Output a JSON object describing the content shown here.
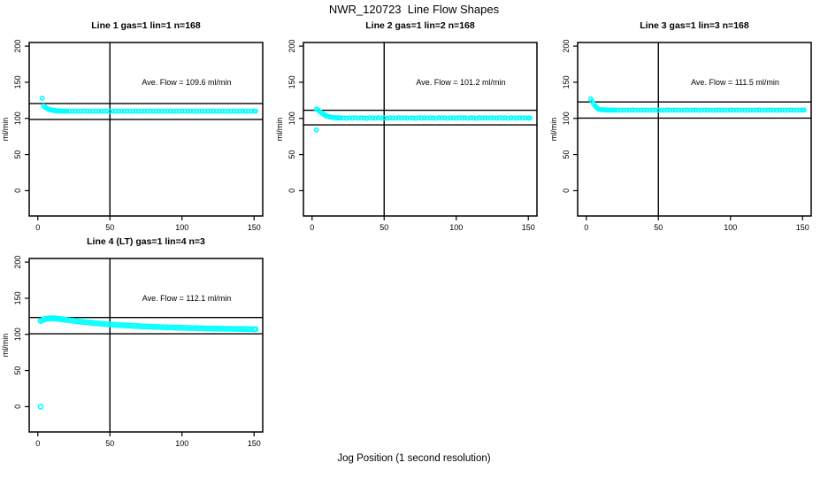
{
  "figure": {
    "title": "NWR_120723  Line Flow Shapes",
    "xlabel": "Jog Position (1 second resolution)",
    "background": "#ffffff",
    "point_color": "#00FFFF",
    "axis_color": "#000000"
  },
  "chart_data": [
    {
      "type": "scatter",
      "title": "Line 1 gas=1 lin=1 n=168",
      "ylabel": "ml/min",
      "annotation": "Ave. Flow =  109.6  ml/min",
      "ave_flow": 109.6,
      "x_ticks": [
        0,
        50,
        100,
        150
      ],
      "y_ticks": [
        0,
        50,
        100,
        150,
        200
      ],
      "xlim": [
        -6,
        156
      ],
      "ylim": [
        -35,
        205
      ],
      "vline_x": 50,
      "ref_lines": [
        120.6,
        98.6
      ],
      "grid": false,
      "point_radius": 2.1,
      "points": [
        [
          3,
          128
        ],
        [
          4,
          117.3
        ],
        [
          5,
          115.6
        ],
        [
          6,
          114.2
        ],
        [
          7,
          113.1
        ],
        [
          8,
          112.3
        ],
        [
          9,
          111.7
        ],
        [
          10,
          111.3
        ],
        [
          11,
          111
        ],
        [
          12,
          110.7
        ],
        [
          13,
          110.5
        ],
        [
          14,
          110.4
        ],
        [
          15,
          110.3
        ],
        [
          16,
          110.2
        ],
        [
          17,
          110.1
        ],
        [
          18,
          110
        ],
        [
          19,
          110
        ],
        [
          20,
          109.9
        ],
        [
          22,
          110
        ],
        [
          24,
          109.8
        ],
        [
          26,
          110.1
        ],
        [
          28,
          109.9
        ],
        [
          30,
          110
        ],
        [
          32,
          110.2
        ],
        [
          34,
          109.8
        ],
        [
          36,
          110
        ],
        [
          38,
          109.9
        ],
        [
          40,
          110.1
        ],
        [
          42,
          110
        ],
        [
          44,
          109.8
        ],
        [
          46,
          110
        ],
        [
          48,
          110.1
        ],
        [
          50,
          109.9
        ],
        [
          52,
          110
        ],
        [
          54,
          109.8
        ],
        [
          56,
          110.2
        ],
        [
          58,
          110
        ],
        [
          60,
          109.9
        ],
        [
          62,
          110.1
        ],
        [
          64,
          110
        ],
        [
          66,
          109.8
        ],
        [
          68,
          110
        ],
        [
          70,
          110.1
        ],
        [
          72,
          109.9
        ],
        [
          74,
          110
        ],
        [
          76,
          110.2
        ],
        [
          78,
          109.8
        ],
        [
          80,
          110
        ],
        [
          82,
          109.9
        ],
        [
          84,
          110.1
        ],
        [
          86,
          110
        ],
        [
          88,
          109.8
        ],
        [
          90,
          110
        ],
        [
          92,
          110.1
        ],
        [
          94,
          109.9
        ],
        [
          96,
          110
        ],
        [
          98,
          109.8
        ],
        [
          100,
          110.2
        ],
        [
          102,
          110
        ],
        [
          104,
          109.9
        ],
        [
          106,
          110.1
        ],
        [
          108,
          110
        ],
        [
          110,
          109.8
        ],
        [
          112,
          110
        ],
        [
          114,
          110.1
        ],
        [
          116,
          109.9
        ],
        [
          118,
          110
        ],
        [
          120,
          110.2
        ],
        [
          122,
          109.8
        ],
        [
          124,
          110
        ],
        [
          126,
          109.9
        ],
        [
          128,
          110.1
        ],
        [
          130,
          110
        ],
        [
          132,
          109.8
        ],
        [
          134,
          110
        ],
        [
          136,
          110.1
        ],
        [
          138,
          109.9
        ],
        [
          140,
          110
        ],
        [
          142,
          110.2
        ],
        [
          144,
          109.8
        ],
        [
          146,
          110
        ],
        [
          148,
          109.9
        ],
        [
          150,
          110.1
        ],
        [
          151,
          110
        ]
      ]
    },
    {
      "type": "scatter",
      "title": "Line 2 gas=1 lin=2 n=168",
      "ylabel": "ml/min",
      "annotation": "Ave. Flow =  101.2  ml/min",
      "ave_flow": 101.2,
      "x_ticks": [
        0,
        50,
        100,
        150
      ],
      "y_ticks": [
        0,
        50,
        100,
        150,
        200
      ],
      "xlim": [
        -6,
        156
      ],
      "ylim": [
        -35,
        205
      ],
      "vline_x": 50,
      "ref_lines": [
        111.3,
        91.1
      ],
      "grid": false,
      "point_radius": 2.1,
      "points": [
        [
          3,
          84
        ],
        [
          3,
          113
        ],
        [
          4,
          111.8
        ],
        [
          5,
          110.2
        ],
        [
          6,
          108.5
        ],
        [
          7,
          107
        ],
        [
          8,
          105.6
        ],
        [
          9,
          104.4
        ],
        [
          10,
          103.5
        ],
        [
          11,
          102.8
        ],
        [
          12,
          102.2
        ],
        [
          13,
          101.8
        ],
        [
          14,
          101.5
        ],
        [
          15,
          101.2
        ],
        [
          16,
          101
        ],
        [
          17,
          100.9
        ],
        [
          18,
          100.8
        ],
        [
          19,
          100.7
        ],
        [
          20,
          100.7
        ],
        [
          22,
          100.6
        ],
        [
          24,
          100.2
        ],
        [
          26,
          100.8
        ],
        [
          28,
          100.5
        ],
        [
          30,
          100.9
        ],
        [
          32,
          100.3
        ],
        [
          34,
          100.7
        ],
        [
          36,
          100.5
        ],
        [
          38,
          100.1
        ],
        [
          40,
          100.8
        ],
        [
          42,
          100.6
        ],
        [
          44,
          100.3
        ],
        [
          46,
          100.9
        ],
        [
          48,
          100.5
        ],
        [
          50,
          100.7
        ],
        [
          52,
          100.2
        ],
        [
          54,
          100.8
        ],
        [
          56,
          100.6
        ],
        [
          58,
          100.4
        ],
        [
          60,
          100.9
        ],
        [
          62,
          100.5
        ],
        [
          64,
          100.7
        ],
        [
          66,
          100.3
        ],
        [
          68,
          100.8
        ],
        [
          70,
          100.6
        ],
        [
          72,
          100.2
        ],
        [
          74,
          100.9
        ],
        [
          76,
          100.5
        ],
        [
          78,
          100.7
        ],
        [
          80,
          100.4
        ],
        [
          82,
          100.8
        ],
        [
          84,
          100.6
        ],
        [
          86,
          100.3
        ],
        [
          88,
          100.9
        ],
        [
          90,
          100.5
        ],
        [
          92,
          100.7
        ],
        [
          94,
          100.2
        ],
        [
          96,
          100.8
        ],
        [
          98,
          100.6
        ],
        [
          100,
          100.4
        ],
        [
          102,
          100.9
        ],
        [
          104,
          100.5
        ],
        [
          106,
          100.7
        ],
        [
          108,
          100.3
        ],
        [
          110,
          100.8
        ],
        [
          112,
          100.6
        ],
        [
          114,
          100.2
        ],
        [
          116,
          100.9
        ],
        [
          118,
          100.5
        ],
        [
          120,
          100.7
        ],
        [
          122,
          100.4
        ],
        [
          124,
          100.8
        ],
        [
          126,
          100.6
        ],
        [
          128,
          100.3
        ],
        [
          130,
          100.9
        ],
        [
          132,
          100.5
        ],
        [
          134,
          100.7
        ],
        [
          136,
          100.2
        ],
        [
          138,
          100.8
        ],
        [
          140,
          100.6
        ],
        [
          142,
          100.4
        ],
        [
          144,
          100.9
        ],
        [
          146,
          100.5
        ],
        [
          148,
          100.7
        ],
        [
          150,
          100.3
        ],
        [
          151,
          100.6
        ]
      ]
    },
    {
      "type": "scatter",
      "title": "Line 3 gas=1 lin=3 n=168",
      "ylabel": "ml/min",
      "annotation": "Ave. Flow =  111.5  ml/min",
      "ave_flow": 111.5,
      "x_ticks": [
        0,
        50,
        100,
        150
      ],
      "y_ticks": [
        0,
        50,
        100,
        150,
        200
      ],
      "xlim": [
        -6,
        156
      ],
      "ylim": [
        -35,
        205
      ],
      "vline_x": 50,
      "ref_lines": [
        122.7,
        100.4
      ],
      "grid": false,
      "point_radius": 2.1,
      "points": [
        [
          3,
          127
        ],
        [
          4,
          124
        ],
        [
          5,
          120.5
        ],
        [
          6,
          117.5
        ],
        [
          7,
          115.2
        ],
        [
          8,
          113.6
        ],
        [
          9,
          112.6
        ],
        [
          10,
          112.1
        ],
        [
          11,
          111.9
        ],
        [
          12,
          111.8
        ],
        [
          13,
          111.7
        ],
        [
          14,
          111.6
        ],
        [
          15,
          111.6
        ],
        [
          16,
          111.5
        ],
        [
          17,
          111.5
        ],
        [
          18,
          111.5
        ],
        [
          19,
          111.4
        ],
        [
          20,
          111.5
        ],
        [
          22,
          111.5
        ],
        [
          24,
          111.3
        ],
        [
          26,
          111.6
        ],
        [
          28,
          111.4
        ],
        [
          30,
          111.5
        ],
        [
          32,
          111.7
        ],
        [
          34,
          111.3
        ],
        [
          36,
          111.5
        ],
        [
          38,
          111.4
        ],
        [
          40,
          111.6
        ],
        [
          42,
          111.5
        ],
        [
          44,
          111.3
        ],
        [
          46,
          111.5
        ],
        [
          48,
          111.6
        ],
        [
          50,
          111.4
        ],
        [
          52,
          111.5
        ],
        [
          54,
          111.3
        ],
        [
          56,
          111.7
        ],
        [
          58,
          111.5
        ],
        [
          60,
          111.4
        ],
        [
          62,
          111.6
        ],
        [
          64,
          111.5
        ],
        [
          66,
          111.3
        ],
        [
          68,
          111.5
        ],
        [
          70,
          111.6
        ],
        [
          72,
          111.4
        ],
        [
          74,
          111.5
        ],
        [
          76,
          111.7
        ],
        [
          78,
          111.3
        ],
        [
          80,
          111.5
        ],
        [
          82,
          111.4
        ],
        [
          84,
          111.6
        ],
        [
          86,
          111.5
        ],
        [
          88,
          111.3
        ],
        [
          90,
          111.5
        ],
        [
          92,
          111.6
        ],
        [
          94,
          111.4
        ],
        [
          96,
          111.5
        ],
        [
          98,
          111.3
        ],
        [
          100,
          111.7
        ],
        [
          102,
          111.5
        ],
        [
          104,
          111.4
        ],
        [
          106,
          111.6
        ],
        [
          108,
          111.5
        ],
        [
          110,
          111.3
        ],
        [
          112,
          111.5
        ],
        [
          114,
          111.6
        ],
        [
          116,
          111.4
        ],
        [
          118,
          111.5
        ],
        [
          120,
          111.7
        ],
        [
          122,
          111.3
        ],
        [
          124,
          111.5
        ],
        [
          126,
          111.4
        ],
        [
          128,
          111.6
        ],
        [
          130,
          111.5
        ],
        [
          132,
          111.3
        ],
        [
          134,
          111.5
        ],
        [
          136,
          111.6
        ],
        [
          138,
          111.4
        ],
        [
          140,
          111.5
        ],
        [
          142,
          111.7
        ],
        [
          144,
          111.3
        ],
        [
          146,
          111.5
        ],
        [
          148,
          111.4
        ],
        [
          150,
          111.6
        ],
        [
          151,
          111.5
        ]
      ]
    },
    {
      "type": "scatter",
      "title": "Line 4 (LT) gas=1 lin=4 n=3",
      "ylabel": "ml/min",
      "annotation": "Ave. Flow =  112.1  ml/min",
      "ave_flow": 112.1,
      "x_ticks": [
        0,
        50,
        100,
        150
      ],
      "y_ticks": [
        0,
        50,
        100,
        150,
        200
      ],
      "xlim": [
        -6,
        156
      ],
      "ylim": [
        -35,
        205
      ],
      "vline_x": 50,
      "ref_lines": [
        123.3,
        100.9
      ],
      "grid": false,
      "point_radius": 2.6,
      "points": [
        [
          2,
          0
        ],
        [
          2,
          118.5
        ],
        [
          3,
          119.8
        ],
        [
          4,
          120.6
        ],
        [
          5,
          121.2
        ],
        [
          6,
          121.6
        ],
        [
          7,
          121.9
        ],
        [
          8,
          122.1
        ],
        [
          9,
          122.2
        ],
        [
          10,
          122.2
        ],
        [
          11,
          122.1
        ],
        [
          12,
          122
        ],
        [
          13,
          121.8
        ],
        [
          14,
          121.6
        ],
        [
          15,
          121.4
        ],
        [
          16,
          121.1
        ],
        [
          17,
          120.9
        ],
        [
          18,
          120.6
        ],
        [
          19,
          120.3
        ],
        [
          20,
          120
        ],
        [
          22,
          119.5
        ],
        [
          24,
          119
        ],
        [
          26,
          118.5
        ],
        [
          28,
          118
        ],
        [
          30,
          117.5
        ],
        [
          32,
          117.1
        ],
        [
          34,
          116.7
        ],
        [
          36,
          116.3
        ],
        [
          38,
          115.9
        ],
        [
          40,
          115.5
        ],
        [
          42,
          115.1
        ],
        [
          44,
          114.8
        ],
        [
          46,
          114.4
        ],
        [
          48,
          114.1
        ],
        [
          50,
          113.8
        ],
        [
          52,
          113.5
        ],
        [
          54,
          113.2
        ],
        [
          56,
          113
        ],
        [
          58,
          112.7
        ],
        [
          60,
          112.5
        ],
        [
          62,
          112.2
        ],
        [
          64,
          112
        ],
        [
          66,
          111.8
        ],
        [
          68,
          111.6
        ],
        [
          70,
          111.4
        ],
        [
          72,
          111.2
        ],
        [
          74,
          111
        ],
        [
          76,
          110.8
        ],
        [
          78,
          110.7
        ],
        [
          80,
          110.5
        ],
        [
          82,
          110.3
        ],
        [
          84,
          110.2
        ],
        [
          86,
          110
        ],
        [
          88,
          109.9
        ],
        [
          90,
          109.7
        ],
        [
          92,
          109.6
        ],
        [
          94,
          109.5
        ],
        [
          96,
          109.3
        ],
        [
          98,
          109.2
        ],
        [
          100,
          109.1
        ],
        [
          102,
          109
        ],
        [
          104,
          108.9
        ],
        [
          106,
          108.8
        ],
        [
          108,
          108.7
        ],
        [
          110,
          108.6
        ],
        [
          112,
          108.5
        ],
        [
          114,
          108.4
        ],
        [
          116,
          108.3
        ],
        [
          118,
          108.2
        ],
        [
          120,
          108.1
        ],
        [
          122,
          108
        ],
        [
          124,
          107.9
        ],
        [
          126,
          107.9
        ],
        [
          128,
          107.8
        ],
        [
          130,
          107.7
        ],
        [
          132,
          107.7
        ],
        [
          134,
          107.6
        ],
        [
          136,
          107.5
        ],
        [
          138,
          107.5
        ],
        [
          140,
          107.4
        ],
        [
          142,
          107.4
        ],
        [
          144,
          107.3
        ],
        [
          146,
          107.3
        ],
        [
          148,
          107.2
        ],
        [
          150,
          107.2
        ],
        [
          151,
          107.1
        ]
      ]
    }
  ]
}
